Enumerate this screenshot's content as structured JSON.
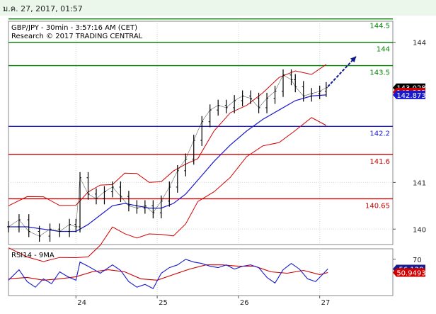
{
  "header": {
    "timestamp": "ม.ค. 27, 2017, 01:57"
  },
  "colors": {
    "price": "#000000",
    "bollinger": "#d00000",
    "ma": "#1a1acc",
    "support": "#cc0000",
    "resistance": "#008000",
    "pivot": "#1a1acc",
    "arrow": "#0a1a8c",
    "rsi": "#1a1acc",
    "rsi_ma": "#cc0000",
    "grid": "#c8dcc8"
  },
  "chart_data": [
    {
      "type": "line",
      "title": "GBP/JPY - 30min - 3:57:16 AM (CET)",
      "subtitle": "Research © 2017 TRADING CENTRAL",
      "ylim": [
        139.67,
        144.45
      ],
      "yticks": [
        140,
        141,
        144
      ],
      "xticks": [
        {
          "x": 24,
          "label": "24"
        },
        {
          "x": 25,
          "label": "25"
        },
        {
          "x": 26,
          "label": "26"
        },
        {
          "x": 27,
          "label": "27"
        }
      ],
      "xlim": [
        23.17,
        27.9
      ],
      "levels": [
        {
          "value": 144.5,
          "label": "144.5",
          "kind": "resistance"
        },
        {
          "value": 144,
          "label": "144",
          "kind": "resistance"
        },
        {
          "value": 143.5,
          "label": "143.5",
          "kind": "resistance"
        },
        {
          "value": 142.2,
          "label": "142.2",
          "kind": "pivot"
        },
        {
          "value": 141.6,
          "label": "141.6",
          "kind": "support"
        },
        {
          "value": 140.65,
          "label": "140.65",
          "kind": "support"
        }
      ],
      "series": [
        {
          "x": [
            23.17,
            23.3,
            23.42,
            23.55,
            23.68,
            23.8,
            23.92,
            24.0,
            24.05,
            24.15,
            24.25,
            24.35,
            24.45,
            24.55,
            24.65,
            24.75,
            24.85,
            24.95,
            25.05,
            25.15,
            25.25,
            25.35,
            25.45,
            25.55,
            25.65,
            25.75,
            25.85,
            25.95,
            26.05,
            26.15,
            26.25,
            26.35,
            26.45,
            26.55,
            26.65,
            26.7,
            26.8,
            26.9,
            27.0,
            27.08
          ],
          "y": [
            140.05,
            140.2,
            139.95,
            139.85,
            140.0,
            139.95,
            140.1,
            140.05,
            141.1,
            140.75,
            140.65,
            140.8,
            140.9,
            140.7,
            140.5,
            140.45,
            140.5,
            140.35,
            140.6,
            140.9,
            141.25,
            141.5,
            141.9,
            142.3,
            142.55,
            142.65,
            142.6,
            142.75,
            142.85,
            142.8,
            142.6,
            142.8,
            142.95,
            143.3,
            143.2,
            143.05,
            142.85,
            142.9,
            142.95,
            143.028
          ]
        },
        {
          "x": [
            23.17,
            23.4,
            23.6,
            23.8,
            24.0,
            24.15,
            24.3,
            24.45,
            24.6,
            24.75,
            24.9,
            25.05,
            25.2,
            25.35,
            25.5,
            25.7,
            25.9,
            26.1,
            26.3,
            26.5,
            26.7,
            26.9,
            27.08
          ],
          "y": [
            140.05,
            140.05,
            140.0,
            139.95,
            139.95,
            140.1,
            140.3,
            140.5,
            140.55,
            140.5,
            140.45,
            140.45,
            140.55,
            140.75,
            141.05,
            141.45,
            141.8,
            142.1,
            142.35,
            142.55,
            142.75,
            142.85,
            142.873
          ]
        }
      ],
      "last_price": "143.028",
      "last_ma": "142.873",
      "last_bb": "142.932",
      "forecast_arrow": {
        "from": [
          27.1,
          143.05
        ],
        "to": [
          27.45,
          143.7
        ]
      }
    },
    {
      "type": "line",
      "title": "RSI14 - 9MA",
      "ylim": [
        18,
        85
      ],
      "yticks": [
        70
      ],
      "xlim": [
        23.17,
        27.9
      ],
      "series": [
        {
          "x": [
            23.17,
            23.3,
            23.4,
            23.5,
            23.6,
            23.7,
            23.8,
            23.9,
            24.0,
            24.05,
            24.15,
            24.3,
            24.45,
            24.55,
            24.65,
            24.75,
            24.85,
            24.95,
            25.05,
            25.15,
            25.25,
            25.35,
            25.45,
            25.55,
            25.65,
            25.75,
            25.85,
            25.95,
            26.05,
            26.15,
            26.25,
            26.35,
            26.45,
            26.55,
            26.65,
            26.75,
            26.85,
            26.95,
            27.05,
            27.1
          ],
          "y": [
            40,
            55,
            38,
            30,
            42,
            35,
            52,
            45,
            40,
            66,
            60,
            50,
            62,
            54,
            38,
            30,
            34,
            28,
            50,
            58,
            62,
            70,
            66,
            64,
            60,
            58,
            62,
            56,
            60,
            62,
            58,
            44,
            36,
            55,
            64,
            56,
            42,
            38,
            50,
            56.128
          ]
        },
        {
          "x": [
            23.17,
            23.4,
            23.6,
            23.8,
            24.0,
            24.2,
            24.4,
            24.6,
            24.8,
            25.0,
            25.2,
            25.4,
            25.6,
            25.8,
            26.0,
            26.2,
            26.4,
            26.6,
            26.8,
            27.0,
            27.1
          ],
          "y": [
            42,
            44,
            40,
            42,
            45,
            52,
            55,
            52,
            42,
            40,
            48,
            56,
            62,
            62,
            60,
            60,
            52,
            50,
            54,
            48,
            50.9493
          ]
        }
      ],
      "last_rsi": "56.128",
      "last_rsi_ma": "50.9493"
    }
  ]
}
